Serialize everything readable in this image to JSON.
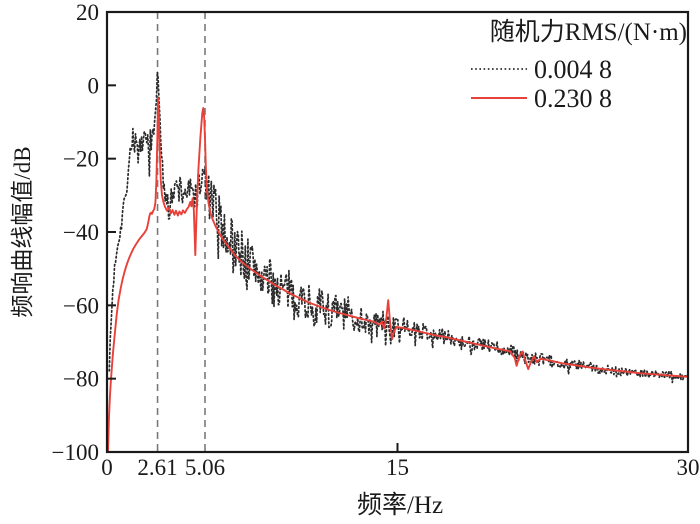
{
  "figure": {
    "background": "#ffffff",
    "axis_color": "#1a1a1a",
    "marker_line_color": "#7a7a7a"
  },
  "chart_data": {
    "type": "line",
    "title": "",
    "xlabel": "频率/Hz",
    "ylabel": "频响曲线幅值/dB",
    "xlim": [
      0,
      30
    ],
    "ylim": [
      -100,
      20
    ],
    "grid": false,
    "xticks": [
      {
        "value": 0,
        "label": "0"
      },
      {
        "value": 15,
        "label": "15"
      },
      {
        "value": 30,
        "label": "30"
      }
    ],
    "yticks": [
      {
        "value": 20,
        "label": "20"
      },
      {
        "value": 0,
        "label": "0"
      },
      {
        "value": -20,
        "label": "−20"
      },
      {
        "value": -40,
        "label": "−40"
      },
      {
        "value": -60,
        "label": "−60"
      },
      {
        "value": -80,
        "label": "−80"
      },
      {
        "value": -100,
        "label": "−100"
      }
    ],
    "marker_lines": [
      {
        "x": 2.61,
        "label": "2.61"
      },
      {
        "x": 5.06,
        "label": "5.06"
      }
    ],
    "legend": {
      "title": "随机力RMS/(N·m)",
      "position": "top-right",
      "entries": [
        {
          "label": "0.004 8",
          "style": "dotted",
          "color": "#2b2b2b"
        },
        {
          "label": "0.230 8",
          "style": "solid",
          "color": "#e8413a"
        }
      ]
    },
    "series": [
      {
        "name": "0.004 8",
        "style": "dotted",
        "color": "#2b2b2b",
        "noise_seed": 7,
        "noise_step_hz": 0.045,
        "anchors": [
          [
            0.12,
            -76,
            1
          ],
          [
            0.2,
            -66,
            1.5
          ],
          [
            0.3,
            -56,
            2
          ],
          [
            0.42,
            -48,
            2
          ],
          [
            0.55,
            -43,
            2
          ],
          [
            0.7,
            -39,
            2.5
          ],
          [
            0.85,
            -33,
            2.5
          ],
          [
            1.0,
            -27,
            3
          ],
          [
            1.15,
            -20,
            3
          ],
          [
            1.3,
            -14.5,
            3
          ],
          [
            1.45,
            -14,
            3.5
          ],
          [
            1.6,
            -18,
            4
          ],
          [
            1.75,
            -19,
            4.5
          ],
          [
            1.9,
            -14.5,
            4
          ],
          [
            2.05,
            -15,
            4
          ],
          [
            2.2,
            -16.5,
            4.5
          ],
          [
            2.35,
            -14,
            3.5
          ],
          [
            2.48,
            -10,
            2.5
          ],
          [
            2.56,
            -2,
            1.5
          ],
          [
            2.61,
            6,
            1
          ],
          [
            2.66,
            1,
            1.5
          ],
          [
            2.74,
            -12,
            2.5
          ],
          [
            2.84,
            -22,
            3
          ],
          [
            2.95,
            -29,
            3.5
          ],
          [
            3.1,
            -29.5,
            4.5
          ],
          [
            3.3,
            -28.5,
            5
          ],
          [
            3.5,
            -30,
            5
          ],
          [
            3.7,
            -27.5,
            4.5
          ],
          [
            3.9,
            -29.5,
            5
          ],
          [
            4.1,
            -28.5,
            4.5
          ],
          [
            4.3,
            -29.5,
            4.5
          ],
          [
            4.5,
            -29.5,
            4.5
          ],
          [
            4.7,
            -28.5,
            5
          ],
          [
            4.9,
            -25.5,
            4.5
          ],
          [
            5.06,
            -25,
            5
          ],
          [
            5.2,
            -30,
            6.5
          ],
          [
            5.4,
            -32,
            7
          ],
          [
            5.6,
            -34,
            7
          ],
          [
            5.8,
            -36,
            7
          ],
          [
            6.0,
            -38.5,
            7
          ],
          [
            6.2,
            -40.5,
            7
          ],
          [
            6.45,
            -42,
            7
          ],
          [
            6.7,
            -43.5,
            7
          ],
          [
            7.0,
            -46,
            7
          ],
          [
            7.3,
            -48,
            7
          ],
          [
            7.6,
            -49.5,
            7
          ],
          [
            7.9,
            -51,
            6.5
          ],
          [
            8.2,
            -52.5,
            6.5
          ],
          [
            8.5,
            -54,
            6
          ],
          [
            8.8,
            -55,
            6
          ],
          [
            9.1,
            -55.5,
            6
          ],
          [
            9.4,
            -56.5,
            6
          ],
          [
            9.7,
            -57,
            5.5
          ],
          [
            10.0,
            -58,
            5.5
          ],
          [
            10.4,
            -59,
            5.5
          ],
          [
            10.8,
            -60,
            5
          ],
          [
            11.2,
            -60.5,
            5
          ],
          [
            11.6,
            -61.5,
            5
          ],
          [
            12.0,
            -62,
            5
          ],
          [
            12.4,
            -62.5,
            5
          ],
          [
            12.8,
            -63,
            4.5
          ],
          [
            13.2,
            -63.5,
            4.5
          ],
          [
            13.6,
            -64.5,
            4
          ],
          [
            14.0,
            -65,
            4
          ],
          [
            14.4,
            -65,
            3.5
          ],
          [
            14.8,
            -66,
            3
          ],
          [
            15.2,
            -65.5,
            2.5
          ],
          [
            15.6,
            -66.2,
            2.5
          ],
          [
            16.0,
            -66.8,
            2.2
          ],
          [
            16.5,
            -67.4,
            2.2
          ],
          [
            17.0,
            -68,
            2.2
          ],
          [
            17.5,
            -68.6,
            2
          ],
          [
            18.0,
            -69.2,
            2
          ],
          [
            18.5,
            -69.8,
            2
          ],
          [
            19.0,
            -70.3,
            2
          ],
          [
            19.5,
            -70.9,
            2
          ],
          [
            20.0,
            -71.5,
            2
          ],
          [
            20.5,
            -72.1,
            1.8
          ],
          [
            21.0,
            -72.8,
            1.8
          ],
          [
            21.5,
            -74.2,
            1.8
          ],
          [
            22.0,
            -74.6,
            1.8
          ],
          [
            22.5,
            -74.8,
            1.6
          ],
          [
            23.0,
            -75.2,
            1.6
          ],
          [
            23.5,
            -75.7,
            1.5
          ],
          [
            24.0,
            -76.1,
            1.5
          ],
          [
            24.5,
            -76.5,
            1.5
          ],
          [
            25.0,
            -76.9,
            1.4
          ],
          [
            25.5,
            -77.2,
            1.4
          ],
          [
            26.0,
            -77.5,
            1.3
          ],
          [
            26.5,
            -77.8,
            1.3
          ],
          [
            27.0,
            -78.1,
            1.2
          ],
          [
            27.5,
            -78.4,
            1.2
          ],
          [
            28.0,
            -78.6,
            1.2
          ],
          [
            28.5,
            -78.8,
            1.1
          ],
          [
            29.0,
            -79.0,
            1.1
          ],
          [
            29.5,
            -79.2,
            1
          ],
          [
            30.0,
            -79.4,
            1
          ]
        ]
      },
      {
        "name": "0.230 8",
        "style": "solid",
        "color": "#e8413a",
        "points": [
          [
            0.05,
            -100
          ],
          [
            0.1,
            -91
          ],
          [
            0.15,
            -85
          ],
          [
            0.2,
            -80.5
          ],
          [
            0.3,
            -73.5
          ],
          [
            0.4,
            -68
          ],
          [
            0.5,
            -62.5
          ],
          [
            0.6,
            -58.5
          ],
          [
            0.7,
            -55.5
          ],
          [
            0.8,
            -53
          ],
          [
            0.9,
            -51
          ],
          [
            1.0,
            -49.2
          ],
          [
            1.1,
            -47.7
          ],
          [
            1.2,
            -46.4
          ],
          [
            1.35,
            -44.7
          ],
          [
            1.5,
            -43.3
          ],
          [
            1.65,
            -42.1
          ],
          [
            1.8,
            -41.1
          ],
          [
            1.95,
            -40.1
          ],
          [
            2.05,
            -39.2
          ],
          [
            2.12,
            -37.6
          ],
          [
            2.18,
            -36.0
          ],
          [
            2.22,
            -35.0
          ],
          [
            2.28,
            -34.7
          ],
          [
            2.32,
            -35.1
          ],
          [
            2.38,
            -34.3
          ],
          [
            2.44,
            -33.7
          ],
          [
            2.5,
            -32.0
          ],
          [
            2.55,
            -26.0
          ],
          [
            2.6,
            -14.0
          ],
          [
            2.64,
            -3.5
          ],
          [
            2.68,
            -9.0
          ],
          [
            2.72,
            -18.0
          ],
          [
            2.78,
            -26.0
          ],
          [
            2.84,
            -30.0
          ],
          [
            2.92,
            -32.0
          ],
          [
            3.0,
            -33.2
          ],
          [
            3.1,
            -34.2
          ],
          [
            3.2,
            -33.4
          ],
          [
            3.3,
            -34.9
          ],
          [
            3.38,
            -34.0
          ],
          [
            3.48,
            -35.3
          ],
          [
            3.56,
            -34.2
          ],
          [
            3.66,
            -35.5
          ],
          [
            3.74,
            -34.4
          ],
          [
            3.84,
            -35.2
          ],
          [
            3.92,
            -34.1
          ],
          [
            4.02,
            -34.8
          ],
          [
            4.12,
            -33.8
          ],
          [
            4.22,
            -33.1
          ],
          [
            4.3,
            -31.8
          ],
          [
            4.36,
            -33.0
          ],
          [
            4.42,
            -30.8
          ],
          [
            4.48,
            -33.8
          ],
          [
            4.53,
            -41.0
          ],
          [
            4.56,
            -46.3
          ],
          [
            4.6,
            -39.0
          ],
          [
            4.65,
            -31.0
          ],
          [
            4.72,
            -23.0
          ],
          [
            4.82,
            -14.5
          ],
          [
            4.92,
            -7.5
          ],
          [
            4.97,
            -6.2
          ],
          [
            5.02,
            -9.0
          ],
          [
            5.06,
            -14.5
          ],
          [
            5.1,
            -22.0
          ],
          [
            5.16,
            -28.5
          ],
          [
            5.24,
            -32.0
          ],
          [
            5.34,
            -34.8
          ],
          [
            5.46,
            -36.6
          ],
          [
            5.6,
            -38.4
          ],
          [
            5.8,
            -40.4
          ],
          [
            6.0,
            -42.1
          ],
          [
            6.3,
            -44.2
          ],
          [
            6.6,
            -46.3
          ],
          [
            7.0,
            -48.4
          ],
          [
            7.5,
            -50.4
          ],
          [
            8.0,
            -52.2
          ],
          [
            8.5,
            -53.9
          ],
          [
            9.0,
            -55.4
          ],
          [
            9.5,
            -56.9
          ],
          [
            10.0,
            -58.2
          ],
          [
            10.5,
            -59.4
          ],
          [
            11.0,
            -60.4
          ],
          [
            11.5,
            -61.3
          ],
          [
            12.0,
            -62.1
          ],
          [
            12.5,
            -62.8
          ],
          [
            13.0,
            -63.5
          ],
          [
            13.4,
            -64.0
          ],
          [
            13.8,
            -64.5
          ],
          [
            14.05,
            -65.3
          ],
          [
            14.2,
            -64.4
          ],
          [
            14.3,
            -66.3
          ],
          [
            14.42,
            -63.6
          ],
          [
            14.52,
            -58.6
          ],
          [
            14.62,
            -64.8
          ],
          [
            14.72,
            -69.2
          ],
          [
            14.82,
            -67.2
          ],
          [
            14.95,
            -65.9
          ],
          [
            15.2,
            -66.1
          ],
          [
            15.5,
            -66.4
          ],
          [
            16.0,
            -67.0
          ],
          [
            16.5,
            -67.6
          ],
          [
            17.0,
            -68.2
          ],
          [
            17.5,
            -68.7
          ],
          [
            18.0,
            -69.3
          ],
          [
            18.5,
            -69.9
          ],
          [
            19.0,
            -70.5
          ],
          [
            19.5,
            -71.1
          ],
          [
            20.0,
            -71.7
          ],
          [
            20.4,
            -72.1
          ],
          [
            20.8,
            -72.5
          ],
          [
            21.05,
            -74.3
          ],
          [
            21.15,
            -76.5
          ],
          [
            21.3,
            -73.8
          ],
          [
            21.45,
            -72.6
          ],
          [
            21.6,
            -75.0
          ],
          [
            21.75,
            -77.4
          ],
          [
            21.9,
            -75.4
          ],
          [
            22.05,
            -73.9
          ],
          [
            22.2,
            -75.5
          ],
          [
            22.4,
            -74.5
          ],
          [
            22.7,
            -74.9
          ],
          [
            23.0,
            -75.2
          ],
          [
            23.5,
            -75.8
          ],
          [
            24.0,
            -76.2
          ],
          [
            24.5,
            -76.6
          ],
          [
            25.0,
            -77.0
          ],
          [
            25.5,
            -77.3
          ],
          [
            26.0,
            -77.6
          ],
          [
            26.5,
            -77.9
          ],
          [
            27.0,
            -78.2
          ],
          [
            27.5,
            -78.5
          ],
          [
            28.0,
            -78.7
          ],
          [
            28.5,
            -78.9
          ],
          [
            29.0,
            -79.1
          ],
          [
            29.5,
            -79.3
          ],
          [
            30.0,
            -79.5
          ]
        ]
      }
    ]
  }
}
